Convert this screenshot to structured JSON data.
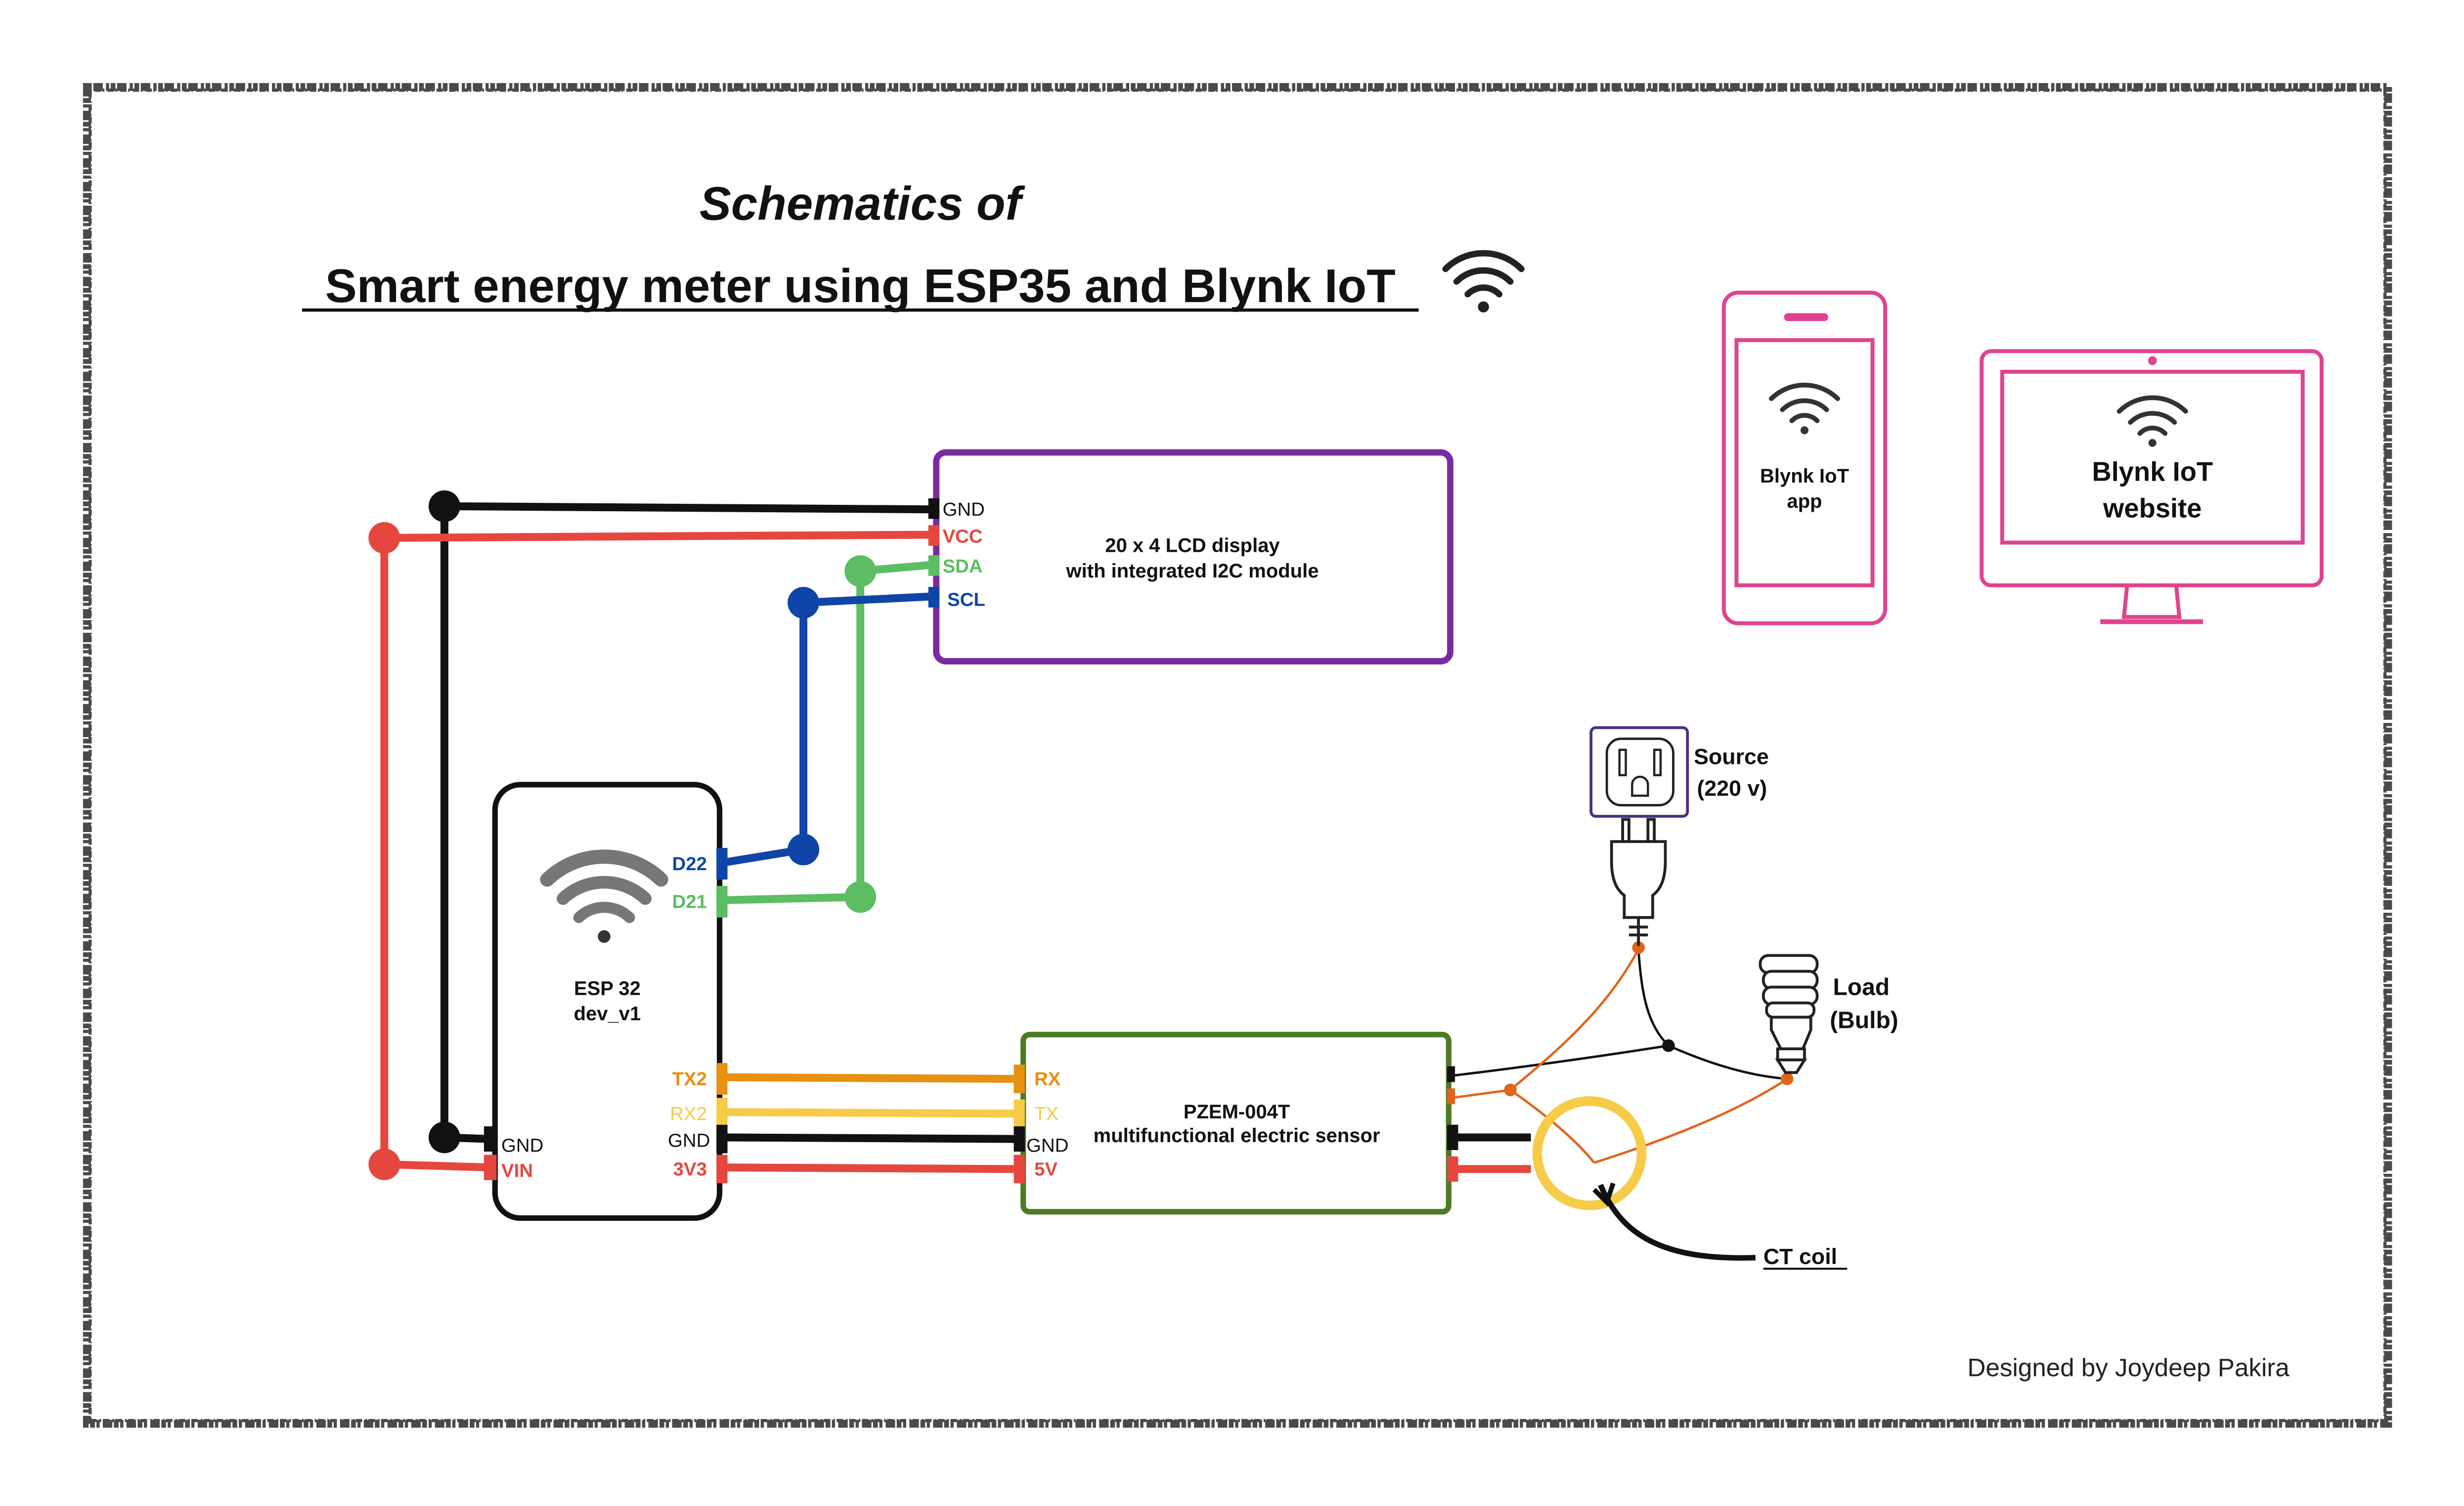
{
  "title": {
    "line1": "Schematics of",
    "line2": "Smart energy meter using ESP35 and Blynk IoT"
  },
  "lcd": {
    "line1": "20 x 4 LCD display",
    "line2": "with integrated I2C module",
    "pins": {
      "gnd": "GND",
      "vcc": "VCC",
      "sda": "SDA",
      "scl": "SCL"
    }
  },
  "esp32": {
    "line1": "ESP 32",
    "line2": "dev_v1",
    "pins": {
      "d22": "D22",
      "d21": "D21",
      "tx2": "TX2",
      "rx2": "RX2",
      "gnd_right": "GND",
      "v3v3": "3V3",
      "gnd_left": "GND",
      "vin": "VIN"
    }
  },
  "pzem": {
    "line1": "PZEM-004T",
    "line2": "multifunctional electric sensor",
    "pins": {
      "rx": "RX",
      "tx": "TX",
      "gnd": "GND",
      "v5": "5V"
    }
  },
  "phone": {
    "line1": "Blynk IoT",
    "line2": "app"
  },
  "monitor": {
    "line1": "Blynk IoT",
    "line2": "website"
  },
  "source": {
    "line1": "Source",
    "line2": "(220 v)"
  },
  "load": {
    "line1": "Load",
    "line2": "(Bulb)"
  },
  "ct_coil": "CT coil",
  "credit": "Designed  by  Joydeep  Pakira",
  "colors": {
    "black": "#111111",
    "red": "#e5473f",
    "green": "#5cbd63",
    "blue": "#0f45a8",
    "orange": "#e8900f",
    "yellow": "#f5cb47",
    "purple": "#7a2aa0",
    "olive": "#4d7a25",
    "pink": "#e0438f",
    "wire_orange": "#e0651a",
    "border": "#555555"
  }
}
